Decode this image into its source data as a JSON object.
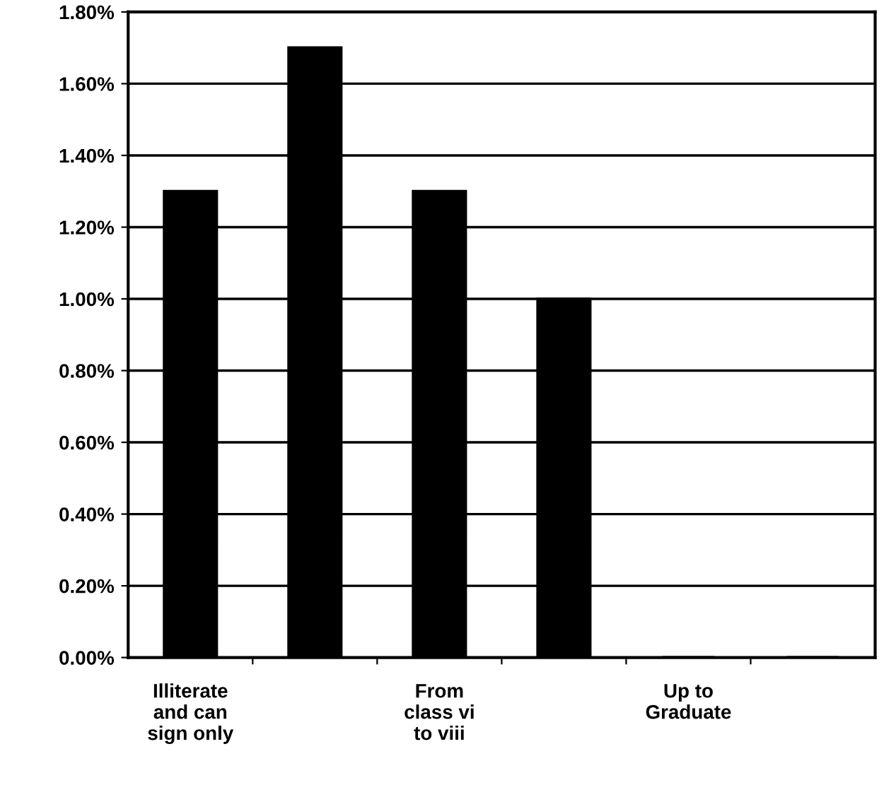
{
  "chart_data": {
    "type": "bar",
    "categories": [
      "Illiterate\nand can\nsign only",
      null,
      "From\nclass vi\nto viii",
      null,
      "Up to\nGraduate",
      null
    ],
    "values": [
      1.3,
      1.7,
      1.3,
      1.0,
      0,
      0
    ],
    "color": "#000000",
    "ylim": [
      0,
      1.8
    ],
    "yticks": [
      {
        "value": 0,
        "label": "0.00%"
      },
      {
        "value": 0.2,
        "label": "0.20%"
      },
      {
        "value": 0.4,
        "label": "0.40%"
      },
      {
        "value": 0.6,
        "label": "0.60%"
      },
      {
        "value": 0.8,
        "label": "0.80%"
      },
      {
        "value": 1.0,
        "label": "1.00%"
      },
      {
        "value": 1.2,
        "label": "1.20%"
      },
      {
        "value": 1.4,
        "label": "1.40%"
      },
      {
        "value": 1.6,
        "label": "1.60%"
      },
      {
        "value": 1.8,
        "label": "1.80%"
      }
    ],
    "grid": "y",
    "legend": false
  }
}
